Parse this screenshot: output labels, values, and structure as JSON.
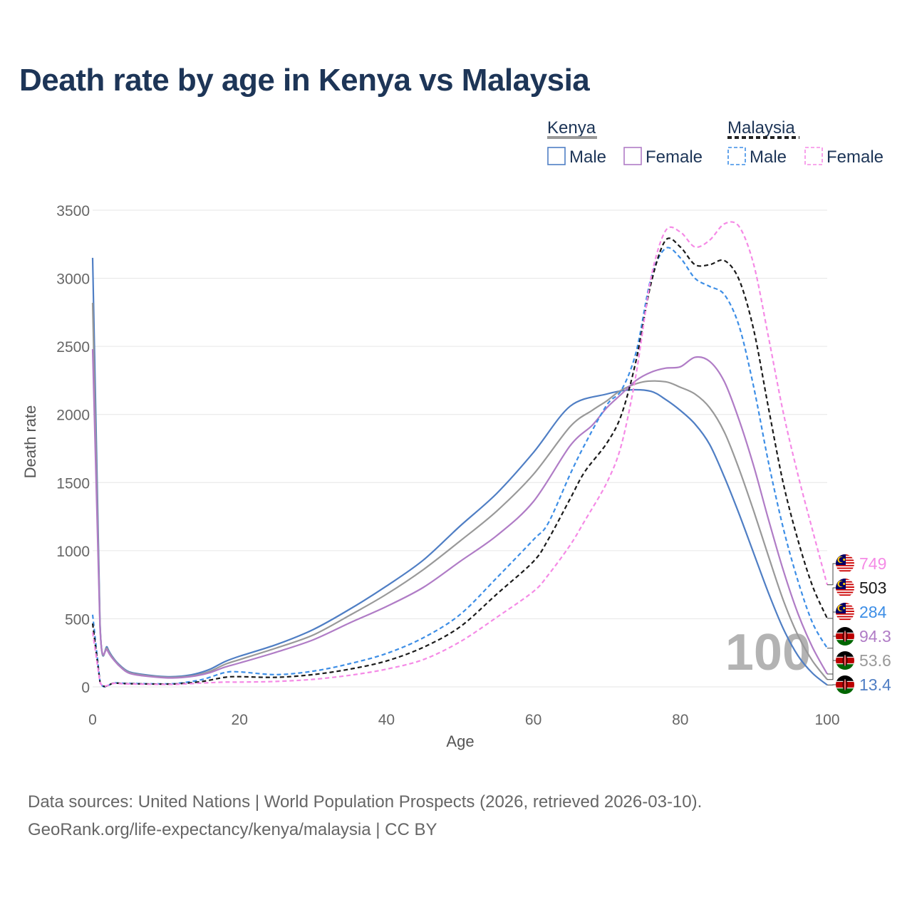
{
  "chart_data": {
    "type": "line",
    "title": "Death rate by age in Kenya vs Malaysia",
    "xlabel": "Age",
    "ylabel": "Death rate",
    "xlim": [
      0,
      100
    ],
    "ylim": [
      0,
      3500
    ],
    "xticks": [
      0,
      20,
      40,
      60,
      80,
      100
    ],
    "yticks": [
      0,
      500,
      1000,
      1500,
      2000,
      2500,
      3000,
      3500
    ],
    "grid": true,
    "watermark": "100",
    "legend": {
      "placement": "top-right",
      "groups": [
        {
          "title": "Kenya",
          "style": "solid",
          "color": "#999999",
          "items": [
            "Male",
            "Female"
          ]
        },
        {
          "title": "Malaysia",
          "style": "dashed",
          "color": "#222222",
          "items": [
            "Male",
            "Female"
          ]
        }
      ]
    },
    "series": [
      {
        "name": "Kenya Male",
        "country": "Kenya",
        "sex": "Male",
        "style": "solid",
        "color": "#4f7ec4",
        "points": [
          [
            0,
            3150
          ],
          [
            1,
            480
          ],
          [
            2,
            290
          ],
          [
            3,
            200
          ],
          [
            4,
            145
          ],
          [
            5,
            110
          ],
          [
            7,
            90
          ],
          [
            10,
            75
          ],
          [
            12,
            78
          ],
          [
            14,
            95
          ],
          [
            16,
            130
          ],
          [
            18,
            185
          ],
          [
            20,
            225
          ],
          [
            25,
            310
          ],
          [
            30,
            420
          ],
          [
            35,
            570
          ],
          [
            40,
            740
          ],
          [
            45,
            930
          ],
          [
            50,
            1180
          ],
          [
            55,
            1420
          ],
          [
            60,
            1720
          ],
          [
            65,
            2060
          ],
          [
            70,
            2150
          ],
          [
            73,
            2180
          ],
          [
            76,
            2170
          ],
          [
            78,
            2110
          ],
          [
            80,
            2030
          ],
          [
            82,
            1930
          ],
          [
            84,
            1780
          ],
          [
            86,
            1540
          ],
          [
            88,
            1270
          ],
          [
            90,
            980
          ],
          [
            92,
            690
          ],
          [
            94,
            430
          ],
          [
            96,
            230
          ],
          [
            98,
            100
          ],
          [
            100,
            13.4
          ]
        ]
      },
      {
        "name": "Kenya Both",
        "country": "Kenya",
        "sex": "Both",
        "style": "solid",
        "color": "#999999",
        "points": [
          [
            0,
            2820
          ],
          [
            1,
            460
          ],
          [
            2,
            280
          ],
          [
            3,
            195
          ],
          [
            4,
            140
          ],
          [
            5,
            105
          ],
          [
            7,
            85
          ],
          [
            10,
            70
          ],
          [
            12,
            72
          ],
          [
            14,
            85
          ],
          [
            16,
            115
          ],
          [
            18,
            165
          ],
          [
            20,
            200
          ],
          [
            25,
            285
          ],
          [
            30,
            380
          ],
          [
            35,
            525
          ],
          [
            40,
            680
          ],
          [
            45,
            860
          ],
          [
            50,
            1070
          ],
          [
            55,
            1290
          ],
          [
            60,
            1560
          ],
          [
            65,
            1910
          ],
          [
            68,
            2030
          ],
          [
            70,
            2100
          ],
          [
            72,
            2180
          ],
          [
            75,
            2240
          ],
          [
            78,
            2240
          ],
          [
            80,
            2200
          ],
          [
            82,
            2150
          ],
          [
            84,
            2050
          ],
          [
            86,
            1870
          ],
          [
            88,
            1600
          ],
          [
            90,
            1290
          ],
          [
            92,
            960
          ],
          [
            94,
            640
          ],
          [
            96,
            380
          ],
          [
            98,
            190
          ],
          [
            100,
            53.6
          ]
        ]
      },
      {
        "name": "Kenya Female",
        "country": "Kenya",
        "sex": "Female",
        "style": "solid",
        "color": "#b07cc6",
        "points": [
          [
            0,
            2480
          ],
          [
            1,
            440
          ],
          [
            2,
            270
          ],
          [
            3,
            190
          ],
          [
            4,
            135
          ],
          [
            5,
            100
          ],
          [
            7,
            80
          ],
          [
            10,
            66
          ],
          [
            12,
            68
          ],
          [
            14,
            80
          ],
          [
            16,
            105
          ],
          [
            18,
            145
          ],
          [
            20,
            175
          ],
          [
            25,
            255
          ],
          [
            30,
            345
          ],
          [
            35,
            470
          ],
          [
            40,
            590
          ],
          [
            45,
            730
          ],
          [
            50,
            920
          ],
          [
            55,
            1110
          ],
          [
            60,
            1360
          ],
          [
            65,
            1770
          ],
          [
            68,
            1920
          ],
          [
            70,
            2050
          ],
          [
            72,
            2150
          ],
          [
            74,
            2250
          ],
          [
            76,
            2310
          ],
          [
            78,
            2340
          ],
          [
            80,
            2350
          ],
          [
            82,
            2420
          ],
          [
            84,
            2390
          ],
          [
            86,
            2240
          ],
          [
            88,
            1960
          ],
          [
            90,
            1620
          ],
          [
            92,
            1230
          ],
          [
            94,
            860
          ],
          [
            96,
            540
          ],
          [
            98,
            290
          ],
          [
            100,
            94.3
          ]
        ]
      },
      {
        "name": "Malaysia Male",
        "country": "Malaysia",
        "sex": "Male",
        "style": "dashed",
        "color": "#3d8ee6",
        "points": [
          [
            0,
            530
          ],
          [
            1,
            38
          ],
          [
            3,
            30
          ],
          [
            5,
            25
          ],
          [
            10,
            22
          ],
          [
            12,
            28
          ],
          [
            15,
            55
          ],
          [
            18,
            105
          ],
          [
            20,
            110
          ],
          [
            25,
            90
          ],
          [
            30,
            115
          ],
          [
            35,
            170
          ],
          [
            40,
            245
          ],
          [
            45,
            360
          ],
          [
            50,
            530
          ],
          [
            55,
            800
          ],
          [
            60,
            1080
          ],
          [
            62,
            1200
          ],
          [
            65,
            1560
          ],
          [
            67,
            1780
          ],
          [
            70,
            2070
          ],
          [
            72,
            2180
          ],
          [
            74,
            2460
          ],
          [
            76,
            3000
          ],
          [
            78,
            3220
          ],
          [
            80,
            3150
          ],
          [
            82,
            3000
          ],
          [
            84,
            2940
          ],
          [
            86,
            2880
          ],
          [
            88,
            2650
          ],
          [
            90,
            2200
          ],
          [
            92,
            1650
          ],
          [
            94,
            1170
          ],
          [
            96,
            780
          ],
          [
            98,
            470
          ],
          [
            100,
            284
          ]
        ]
      },
      {
        "name": "Malaysia Both",
        "country": "Malaysia",
        "sex": "Both",
        "style": "dashed",
        "color": "#1a1a1a",
        "points": [
          [
            0,
            465
          ],
          [
            1,
            36
          ],
          [
            3,
            28
          ],
          [
            5,
            23
          ],
          [
            10,
            20
          ],
          [
            12,
            24
          ],
          [
            15,
            40
          ],
          [
            18,
            70
          ],
          [
            20,
            75
          ],
          [
            25,
            70
          ],
          [
            30,
            90
          ],
          [
            35,
            130
          ],
          [
            40,
            190
          ],
          [
            45,
            290
          ],
          [
            50,
            440
          ],
          [
            55,
            680
          ],
          [
            60,
            920
          ],
          [
            62,
            1080
          ],
          [
            65,
            1380
          ],
          [
            67,
            1580
          ],
          [
            70,
            1790
          ],
          [
            72,
            2000
          ],
          [
            74,
            2400
          ],
          [
            76,
            2960
          ],
          [
            78,
            3280
          ],
          [
            80,
            3230
          ],
          [
            82,
            3100
          ],
          [
            84,
            3100
          ],
          [
            86,
            3130
          ],
          [
            88,
            2990
          ],
          [
            90,
            2620
          ],
          [
            92,
            2050
          ],
          [
            94,
            1500
          ],
          [
            96,
            1080
          ],
          [
            98,
            740
          ],
          [
            100,
            503
          ]
        ]
      },
      {
        "name": "Malaysia Female",
        "country": "Malaysia",
        "sex": "Female",
        "style": "dashed",
        "color": "#f58ae6",
        "points": [
          [
            0,
            400
          ],
          [
            1,
            34
          ],
          [
            3,
            26
          ],
          [
            5,
            21
          ],
          [
            10,
            18
          ],
          [
            12,
            20
          ],
          [
            15,
            28
          ],
          [
            18,
            35
          ],
          [
            20,
            35
          ],
          [
            25,
            40
          ],
          [
            30,
            55
          ],
          [
            35,
            85
          ],
          [
            40,
            130
          ],
          [
            45,
            200
          ],
          [
            50,
            330
          ],
          [
            55,
            510
          ],
          [
            60,
            700
          ],
          [
            62,
            820
          ],
          [
            65,
            1040
          ],
          [
            67,
            1220
          ],
          [
            70,
            1500
          ],
          [
            72,
            1780
          ],
          [
            74,
            2300
          ],
          [
            76,
            3000
          ],
          [
            78,
            3350
          ],
          [
            80,
            3340
          ],
          [
            82,
            3230
          ],
          [
            84,
            3280
          ],
          [
            86,
            3400
          ],
          [
            88,
            3380
          ],
          [
            90,
            3100
          ],
          [
            92,
            2570
          ],
          [
            94,
            2020
          ],
          [
            96,
            1560
          ],
          [
            98,
            1150
          ],
          [
            100,
            749
          ]
        ]
      }
    ],
    "end_labels": [
      {
        "series": "Malaysia Female",
        "country": "Malaysia",
        "value": 749,
        "text": "749",
        "color": "#f58ae6",
        "flag": "malaysia-flag"
      },
      {
        "series": "Malaysia Both",
        "country": "Malaysia",
        "value": 503,
        "text": "503",
        "color": "#1a1a1a",
        "flag": "malaysia-flag"
      },
      {
        "series": "Malaysia Male",
        "country": "Malaysia",
        "value": 284,
        "text": "284",
        "color": "#3d8ee6",
        "flag": "malaysia-flag"
      },
      {
        "series": "Kenya Female",
        "country": "Kenya",
        "value": 94.3,
        "text": "94.3",
        "color": "#b07cc6",
        "flag": "kenya-flag"
      },
      {
        "series": "Kenya Both",
        "country": "Kenya",
        "value": 53.6,
        "text": "53.6",
        "color": "#999999",
        "flag": "kenya-flag"
      },
      {
        "series": "Kenya Male",
        "country": "Kenya",
        "value": 13.4,
        "text": "13.4",
        "color": "#4f7ec4",
        "flag": "kenya-flag"
      }
    ]
  },
  "sources": {
    "line1": "Data sources: United Nations | World Population Prospects (2026, retrieved 2026-03-10).",
    "line2": "GeoRank.org/life-expectancy/kenya/malaysia | CC BY"
  }
}
